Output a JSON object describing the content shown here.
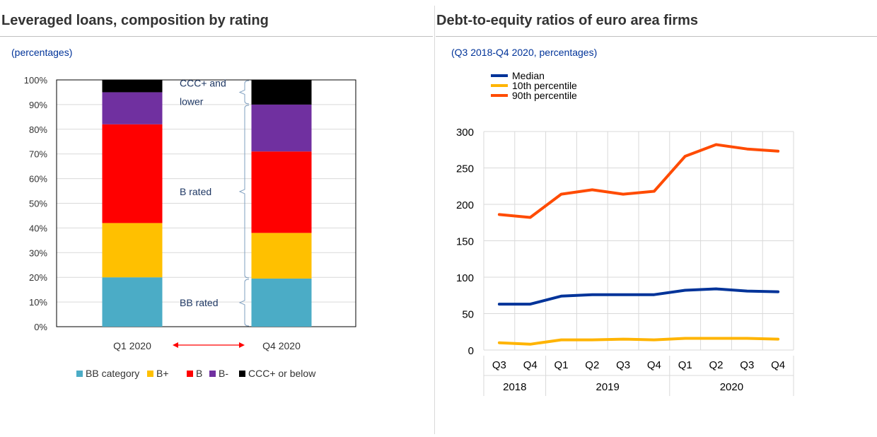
{
  "panels": [
    {
      "title": "Leveraged loans, composition by rating",
      "subtitle": "(percentages)"
    },
    {
      "title": "Debt-to-equity ratios of euro area firms",
      "subtitle": "(Q3 2018-Q4 2020, percentages)"
    }
  ],
  "chart_data": [
    {
      "type": "bar",
      "stacked": true,
      "categories": [
        "Q1 2020",
        "Q4 2020"
      ],
      "series": [
        {
          "name": "BB category",
          "color": "#4BACC6",
          "values": [
            20,
            19.5
          ]
        },
        {
          "name": "B+",
          "color": "#FFC000",
          "values": [
            22,
            18.5
          ]
        },
        {
          "name": "B",
          "color": "#FF0000",
          "values": [
            40,
            33
          ]
        },
        {
          "name": "B-",
          "color": "#7030A0",
          "values": [
            13,
            19
          ]
        },
        {
          "name": "CCC+ or below",
          "color": "#000000",
          "values": [
            5,
            10
          ]
        }
      ],
      "ylim": [
        0,
        100
      ],
      "yticks": [
        "0%",
        "10%",
        "20%",
        "30%",
        "40%",
        "50%",
        "60%",
        "70%",
        "80%",
        "90%",
        "100%"
      ],
      "annotations": [
        {
          "lines": [
            "CCC+ and",
            "lower"
          ],
          "from": 90,
          "to": 100
        },
        {
          "lines": [
            "B rated"
          ],
          "from": 19.5,
          "to": 90
        },
        {
          "lines": [
            "BB rated"
          ],
          "from": 0,
          "to": 19.5
        }
      ],
      "arrow_color": "#FF0000",
      "legend_position": "bottom",
      "grid": true
    },
    {
      "type": "line",
      "x": [
        "Q3",
        "Q4",
        "Q1",
        "Q2",
        "Q3",
        "Q4",
        "Q1",
        "Q2",
        "Q3",
        "Q4"
      ],
      "year_groups": [
        {
          "label": "2018",
          "count": 2
        },
        {
          "label": "2019",
          "count": 4
        },
        {
          "label": "2020",
          "count": 4
        }
      ],
      "series": [
        {
          "name": "Median",
          "color": "#003399",
          "values": [
            63,
            63,
            74,
            76,
            76,
            76,
            82,
            84,
            81,
            80
          ]
        },
        {
          "name": "10th percentile",
          "color": "#FFB400",
          "values": [
            10,
            8,
            14,
            14,
            15,
            14,
            16,
            16,
            16,
            15
          ]
        },
        {
          "name": "90th percentile",
          "color": "#FF4B00",
          "values": [
            186,
            182,
            214,
            220,
            214,
            218,
            266,
            282,
            276,
            273
          ]
        }
      ],
      "ylim": [
        0,
        300
      ],
      "yticks": [
        0,
        50,
        100,
        150,
        200,
        250,
        300
      ],
      "legend_position": "top-left",
      "grid": true
    }
  ]
}
